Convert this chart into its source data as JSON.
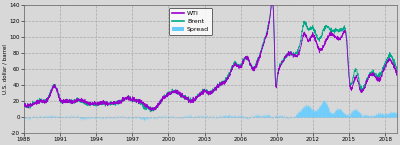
{
  "title": "",
  "xlabel": "",
  "ylabel": "U.S. dollar / barrel",
  "xlim": [
    1988,
    2019
  ],
  "ylim": [
    -20,
    140
  ],
  "yticks": [
    -20,
    0,
    20,
    40,
    60,
    80,
    100,
    120,
    140
  ],
  "xticks": [
    1988,
    1991,
    1994,
    1997,
    2000,
    2003,
    2006,
    2009,
    2012,
    2015,
    2018
  ],
  "wti_color": "#9900cc",
  "brent_color": "#00aa88",
  "spread_color": "#66ccff",
  "background_color": "#d8d8d8",
  "plot_bg_color": "#d8d8d8",
  "grid_color": "#aaaaaa",
  "legend_labels": [
    "WTI",
    "Brent",
    "Spread"
  ],
  "figsize": [
    4.0,
    1.45
  ],
  "dpi": 100
}
